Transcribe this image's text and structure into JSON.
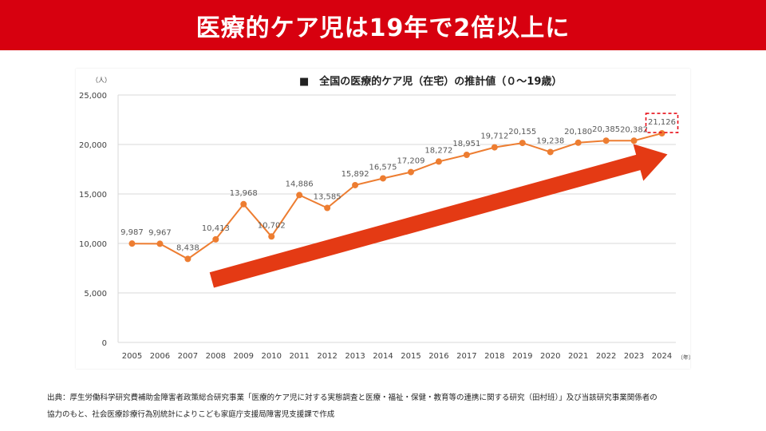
{
  "header": {
    "title": "医療的ケア児は19年で2倍以上に"
  },
  "chart_data": {
    "type": "line",
    "title": "■　全国の医療的ケア児（在宅）の推計値（０～19歳）",
    "y_unit": "（人）",
    "x_unit": "（年）",
    "ylim": [
      0,
      25000
    ],
    "y_ticks": [
      0,
      5000,
      10000,
      15000,
      20000,
      25000
    ],
    "y_tick_labels": [
      "0",
      "5,000",
      "10,000",
      "15,000",
      "20,000",
      "25,000"
    ],
    "grid": true,
    "categories": [
      "2005",
      "2006",
      "2007",
      "2008",
      "2009",
      "2010",
      "2011",
      "2012",
      "2013",
      "2014",
      "2015",
      "2016",
      "2017",
      "2018",
      "2019",
      "2020",
      "2021",
      "2022",
      "2023",
      "2024"
    ],
    "values": [
      9987,
      9967,
      8438,
      10413,
      13968,
      10702,
      14886,
      13585,
      15892,
      16575,
      17209,
      18272,
      18951,
      19712,
      20155,
      19238,
      20180,
      20385,
      20382,
      21126
    ],
    "value_labels": [
      "9,987",
      "9,967",
      "8,438",
      "10,413",
      "13,968",
      "10,702",
      "14,886",
      "13,585",
      "15,892",
      "16,575",
      "17,209",
      "18,272",
      "18,951",
      "19,712",
      "20,155",
      "19,238",
      "20,180",
      "20,385",
      "20,382",
      "21,126"
    ],
    "line_color": "#ed7d31",
    "highlight_index": 19,
    "highlight_color": "#e8101a",
    "trend_arrow_color": "#e43a14"
  },
  "source": {
    "line1": "出典：厚生労働科学研究費補助金障害者政策総合研究事業「医療的ケア児に対する実態調査と医療・福祉・保健・教育等の連携に関する研究（田村班）」及び当該研究事業関係者の",
    "line2": "協力のもと、社会医療診療行為別統計によりこども家庭庁支援局障害児支援課で作成"
  }
}
